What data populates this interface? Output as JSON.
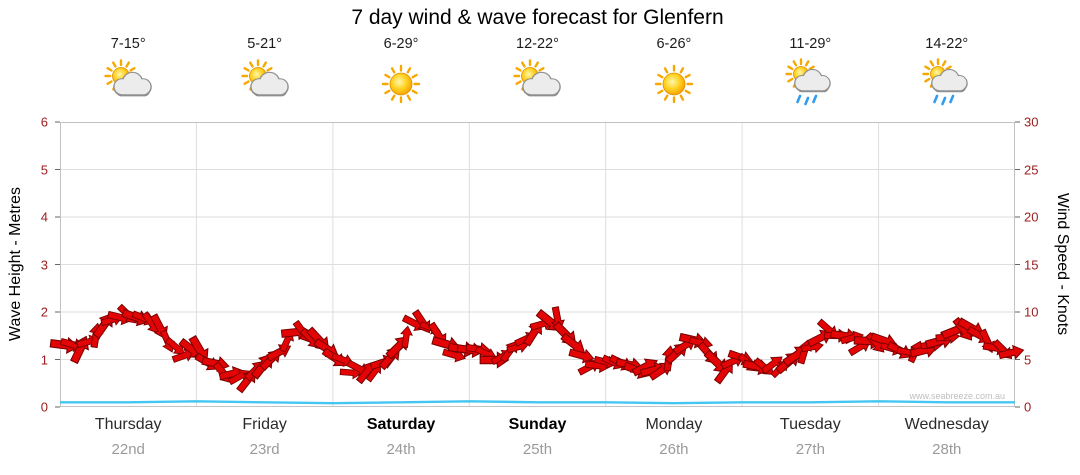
{
  "title": "7 day wind & wave forecast for Glenfern",
  "watermark": "www.seabreeze.com.au",
  "axes": {
    "left_label": "Wave Height - Metres",
    "right_label": "Wind Speed - Knots",
    "left_ticks": [
      0,
      1,
      2,
      3,
      4,
      5,
      6
    ],
    "right_ticks": [
      0,
      5,
      10,
      15,
      20,
      25,
      30
    ],
    "tick_color": "#9b1c1c"
  },
  "days": [
    {
      "name": "Thursday",
      "date": "22nd",
      "temp": "7-15°",
      "icon": "sun-cloud",
      "bold": false
    },
    {
      "name": "Friday",
      "date": "23rd",
      "temp": "5-21°",
      "icon": "sun-cloud",
      "bold": false
    },
    {
      "name": "Saturday",
      "date": "24th",
      "temp": "6-29°",
      "icon": "sun",
      "bold": true
    },
    {
      "name": "Sunday",
      "date": "25th",
      "temp": "12-22°",
      "icon": "sun-cloud",
      "bold": true
    },
    {
      "name": "Monday",
      "date": "26th",
      "temp": "6-26°",
      "icon": "sun",
      "bold": false
    },
    {
      "name": "Tuesday",
      "date": "27th",
      "temp": "11-29°",
      "icon": "sun-cloud-rain",
      "bold": false
    },
    {
      "name": "Wednesday",
      "date": "28th",
      "temp": "14-22°",
      "icon": "sun-cloud-rain",
      "bold": false
    }
  ],
  "chart_data": {
    "type": "line",
    "title": "7 day wind & wave forecast for Glenfern",
    "categories": [
      "Thursday 22nd",
      "Friday 23rd",
      "Saturday 24th",
      "Sunday 25th",
      "Monday 26th",
      "Tuesday 27th",
      "Wednesday 28th"
    ],
    "samples_per_day": 8,
    "y_left": {
      "label": "Wave Height - Metres",
      "range": [
        0,
        6
      ]
    },
    "y_right": {
      "label": "Wind Speed - Knots",
      "range": [
        0,
        30
      ]
    },
    "grid": true,
    "legend": "none",
    "series": [
      {
        "name": "Wind Speed",
        "unit": "knots",
        "axis": "right",
        "color": "#e30505",
        "style": "wind-arrows",
        "values": [
          7.0,
          6.0,
          7.5,
          9.5,
          10.0,
          9.5,
          8.0,
          5.5,
          6.0,
          4.5,
          3.2,
          3.0,
          4.5,
          6.0,
          8.0,
          7.0,
          5.5,
          4.0,
          3.5,
          4.5,
          6.5,
          9.5,
          8.0,
          5.5,
          6.0,
          5.5,
          5.0,
          6.5,
          8.5,
          9.5,
          7.0,
          4.5,
          4.5,
          5.0,
          4.0,
          3.5,
          5.5,
          7.5,
          6.0,
          4.0,
          5.0,
          4.5,
          4.0,
          5.0,
          6.5,
          8.0,
          7.5,
          6.5,
          7.0,
          6.0,
          5.5,
          6.5,
          7.0,
          8.5,
          7.5,
          6.0,
          5.5
        ]
      },
      {
        "name": "Wave Height",
        "unit": "metres",
        "axis": "left",
        "color": "#45c6f2",
        "style": "line",
        "values": [
          0.1,
          0.1,
          0.12,
          0.1,
          0.08,
          0.1,
          0.12,
          0.1,
          0.1,
          0.08,
          0.1,
          0.1,
          0.12,
          0.1,
          0.1
        ]
      }
    ]
  }
}
